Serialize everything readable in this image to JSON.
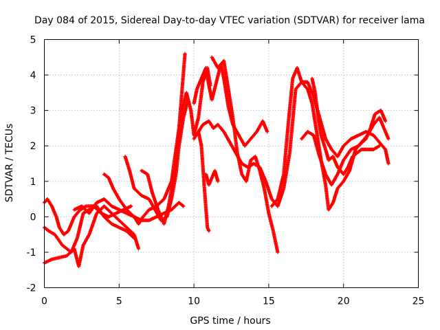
{
  "chart_data": {
    "type": "scatter",
    "title": "Day 084 of 2015, Sidereal Day-to-day VTEC variation (SDTVAR) for receiver lama",
    "xlabel": "GPS time / hours",
    "ylabel": "SDTVAR / TECUs",
    "xlim": [
      0,
      25
    ],
    "ylim": [
      -2,
      5
    ],
    "xticks": [
      "0",
      "5",
      "10",
      "15",
      "20",
      "25"
    ],
    "yticks": [
      "-2",
      "-1",
      "0",
      "1",
      "2",
      "3",
      "4",
      "5"
    ],
    "grid": true,
    "marker": "plus",
    "color": "#ff0000",
    "series": [
      {
        "values": [
          [
            0.0,
            -1.3
          ],
          [
            0.5,
            -1.2
          ],
          [
            1.0,
            -1.15
          ],
          [
            1.5,
            -1.1
          ],
          [
            2.0,
            -0.9
          ],
          [
            2.3,
            -1.4
          ],
          [
            2.6,
            -0.8
          ],
          [
            3.0,
            -0.5
          ],
          [
            3.5,
            0.1
          ],
          [
            4.0,
            0.3
          ],
          [
            4.5,
            0.1
          ],
          [
            5.0,
            -0.1
          ],
          [
            5.5,
            -0.3
          ],
          [
            6.0,
            -0.5
          ],
          [
            6.3,
            -0.9
          ]
        ]
      },
      {
        "values": [
          [
            0.0,
            -0.3
          ],
          [
            0.3,
            -0.4
          ],
          [
            0.7,
            -0.5
          ],
          [
            1.2,
            -0.8
          ],
          [
            1.8,
            -1.0
          ],
          [
            2.2,
            -0.6
          ],
          [
            2.6,
            0.1
          ],
          [
            3.0,
            0.2
          ],
          [
            3.5,
            0.3
          ],
          [
            4.0,
            0.0
          ],
          [
            4.5,
            -0.2
          ],
          [
            5.0,
            -0.3
          ],
          [
            5.5,
            -0.4
          ],
          [
            6.0,
            -0.6
          ]
        ]
      },
      {
        "values": [
          [
            0.0,
            0.4
          ],
          [
            0.2,
            0.5
          ],
          [
            0.5,
            0.3
          ],
          [
            0.8,
            0.0
          ],
          [
            1.0,
            -0.3
          ],
          [
            1.3,
            -0.5
          ],
          [
            1.6,
            -0.4
          ],
          [
            2.0,
            0.0
          ],
          [
            2.4,
            0.2
          ],
          [
            2.8,
            0.3
          ],
          [
            3.3,
            0.3
          ],
          [
            3.8,
            0.1
          ],
          [
            4.3,
            0.0
          ],
          [
            4.8,
            0.1
          ],
          [
            5.3,
            0.2
          ],
          [
            5.8,
            0.3
          ]
        ]
      },
      {
        "values": [
          [
            2.0,
            0.2
          ],
          [
            2.5,
            0.3
          ],
          [
            3.0,
            0.1
          ],
          [
            3.5,
            0.4
          ],
          [
            4.0,
            0.5
          ],
          [
            4.5,
            0.3
          ],
          [
            5.0,
            0.2
          ],
          [
            5.5,
            0.1
          ],
          [
            6.0,
            0.0
          ],
          [
            6.5,
            -0.1
          ],
          [
            7.0,
            -0.1
          ],
          [
            7.5,
            0.0
          ],
          [
            8.0,
            0.1
          ],
          [
            8.5,
            0.2
          ],
          [
            9.0,
            0.4
          ],
          [
            9.3,
            0.3
          ]
        ]
      },
      {
        "values": [
          [
            4.0,
            1.2
          ],
          [
            4.3,
            1.1
          ],
          [
            4.6,
            0.8
          ],
          [
            5.0,
            0.5
          ],
          [
            5.5,
            0.2
          ],
          [
            6.0,
            0.0
          ],
          [
            6.3,
            -0.2
          ],
          [
            6.6,
            0.0
          ],
          [
            7.0,
            0.2
          ],
          [
            7.5,
            0.3
          ],
          [
            8.0,
            0.5
          ],
          [
            8.5,
            1.0
          ],
          [
            9.0,
            2.5
          ],
          [
            9.4,
            4.6
          ]
        ]
      },
      {
        "values": [
          [
            5.4,
            1.7
          ],
          [
            5.7,
            1.3
          ],
          [
            6.0,
            0.8
          ],
          [
            6.5,
            0.6
          ],
          [
            7.0,
            0.5
          ],
          [
            7.4,
            0.2
          ],
          [
            7.8,
            -0.1
          ],
          [
            8.2,
            0.0
          ],
          [
            8.5,
            0.5
          ],
          [
            8.8,
            1.2
          ],
          [
            9.0,
            2.0
          ],
          [
            9.3,
            2.8
          ],
          [
            9.6,
            3.3
          ]
        ]
      },
      {
        "values": [
          [
            6.5,
            1.3
          ],
          [
            6.9,
            1.2
          ],
          [
            7.2,
            0.7
          ],
          [
            7.6,
            0.2
          ],
          [
            8.0,
            -0.2
          ],
          [
            8.3,
            0.3
          ],
          [
            8.6,
            1.0
          ],
          [
            8.9,
            2.0
          ],
          [
            9.2,
            3.0
          ],
          [
            9.5,
            3.5
          ],
          [
            9.8,
            3.0
          ],
          [
            10.0,
            2.3
          ],
          [
            10.3,
            2.8
          ],
          [
            10.6,
            3.8
          ],
          [
            10.9,
            4.2
          ],
          [
            11.1,
            3.7
          ]
        ]
      },
      {
        "values": [
          [
            10.0,
            3.2
          ],
          [
            10.2,
            3.6
          ],
          [
            10.5,
            3.9
          ],
          [
            10.8,
            4.2
          ],
          [
            11.0,
            3.7
          ],
          [
            11.2,
            3.3
          ],
          [
            11.5,
            3.8
          ],
          [
            11.8,
            4.3
          ],
          [
            12.0,
            3.9
          ],
          [
            12.3,
            3.1
          ],
          [
            12.6,
            2.6
          ],
          [
            13.0,
            2.3
          ],
          [
            13.4,
            2.0
          ],
          [
            13.8,
            2.2
          ],
          [
            14.2,
            2.4
          ],
          [
            14.6,
            2.7
          ],
          [
            14.9,
            2.4
          ]
        ]
      },
      {
        "values": [
          [
            10.0,
            2.2
          ],
          [
            10.3,
            2.4
          ],
          [
            10.6,
            2.6
          ],
          [
            11.0,
            2.7
          ],
          [
            11.3,
            2.5
          ],
          [
            11.6,
            2.6
          ],
          [
            12.0,
            2.4
          ],
          [
            12.4,
            2.1
          ],
          [
            12.8,
            1.8
          ],
          [
            13.2,
            1.5
          ],
          [
            13.6,
            1.4
          ],
          [
            14.0,
            1.5
          ],
          [
            14.4,
            1.4
          ],
          [
            14.8,
            1.0
          ],
          [
            15.2,
            0.5
          ],
          [
            15.6,
            0.3
          ],
          [
            16.0,
            0.8
          ],
          [
            16.4,
            1.8
          ],
          [
            16.8,
            3.6
          ],
          [
            17.2,
            3.8
          ],
          [
            17.6,
            3.8
          ],
          [
            18.0,
            3.4
          ],
          [
            18.4,
            2.8
          ],
          [
            18.8,
            2.2
          ],
          [
            19.2,
            1.9
          ],
          [
            19.6,
            1.7
          ],
          [
            20.0,
            2.0
          ],
          [
            20.5,
            2.2
          ],
          [
            21.0,
            2.3
          ],
          [
            21.5,
            2.4
          ],
          [
            22.0,
            2.3
          ],
          [
            22.4,
            2.1
          ],
          [
            22.8,
            1.9
          ],
          [
            23.0,
            1.5
          ]
        ]
      },
      {
        "values": [
          [
            10.8,
            1.2
          ],
          [
            11.0,
            0.9
          ],
          [
            11.2,
            1.1
          ],
          [
            11.4,
            1.3
          ],
          [
            11.6,
            1.0
          ]
        ]
      },
      {
        "values": [
          [
            10.3,
            2.4
          ],
          [
            10.5,
            2.0
          ],
          [
            10.7,
            0.8
          ],
          [
            10.9,
            -0.3
          ],
          [
            11.0,
            -0.4
          ]
        ]
      },
      {
        "values": [
          [
            11.2,
            4.5
          ],
          [
            11.6,
            4.2
          ],
          [
            12.0,
            4.4
          ],
          [
            12.3,
            3.6
          ],
          [
            12.6,
            2.8
          ],
          [
            12.9,
            1.8
          ],
          [
            13.2,
            1.2
          ],
          [
            13.5,
            1.0
          ],
          [
            13.8,
            1.6
          ],
          [
            14.1,
            1.7
          ],
          [
            14.4,
            1.3
          ],
          [
            14.7,
            0.8
          ],
          [
            15.0,
            0.1
          ],
          [
            15.3,
            -0.4
          ],
          [
            15.6,
            -1.0
          ]
        ]
      },
      {
        "values": [
          [
            15.2,
            0.3
          ],
          [
            15.6,
            0.5
          ],
          [
            16.0,
            1.2
          ],
          [
            16.3,
            2.6
          ],
          [
            16.6,
            3.9
          ],
          [
            16.9,
            4.2
          ],
          [
            17.2,
            3.8
          ],
          [
            17.6,
            3.6
          ],
          [
            17.9,
            3.2
          ],
          [
            18.2,
            2.4
          ],
          [
            18.5,
            1.6
          ],
          [
            18.8,
            0.9
          ],
          [
            19.0,
            0.2
          ],
          [
            19.3,
            0.4
          ],
          [
            19.6,
            0.8
          ],
          [
            20.0,
            1.0
          ],
          [
            20.4,
            1.3
          ],
          [
            20.8,
            1.9
          ],
          [
            21.2,
            2.1
          ],
          [
            21.6,
            2.3
          ],
          [
            22.0,
            2.6
          ],
          [
            22.4,
            2.8
          ],
          [
            22.7,
            2.5
          ],
          [
            23.0,
            2.2
          ]
        ]
      },
      {
        "values": [
          [
            17.2,
            2.2
          ],
          [
            17.6,
            2.4
          ],
          [
            18.0,
            2.3
          ],
          [
            18.4,
            1.7
          ],
          [
            18.8,
            1.2
          ],
          [
            19.2,
            0.9
          ],
          [
            19.6,
            1.2
          ],
          [
            20.0,
            1.6
          ],
          [
            20.5,
            1.9
          ],
          [
            21.0,
            2.0
          ],
          [
            21.5,
            2.2
          ],
          [
            21.8,
            2.5
          ],
          [
            22.1,
            2.9
          ],
          [
            22.5,
            3.0
          ],
          [
            22.8,
            2.7
          ]
        ]
      },
      {
        "values": [
          [
            17.9,
            3.9
          ],
          [
            18.1,
            3.5
          ],
          [
            18.3,
            2.8
          ],
          [
            18.5,
            2.3
          ],
          [
            18.8,
            1.9
          ],
          [
            19.0,
            1.6
          ],
          [
            19.3,
            1.7
          ],
          [
            19.6,
            1.4
          ],
          [
            20.0,
            1.2
          ],
          [
            20.3,
            1.4
          ],
          [
            20.6,
            1.7
          ],
          [
            20.9,
            1.8
          ],
          [
            21.2,
            1.9
          ],
          [
            21.6,
            1.9
          ],
          [
            22.0,
            1.9
          ],
          [
            22.4,
            2.0
          ]
        ]
      }
    ]
  }
}
